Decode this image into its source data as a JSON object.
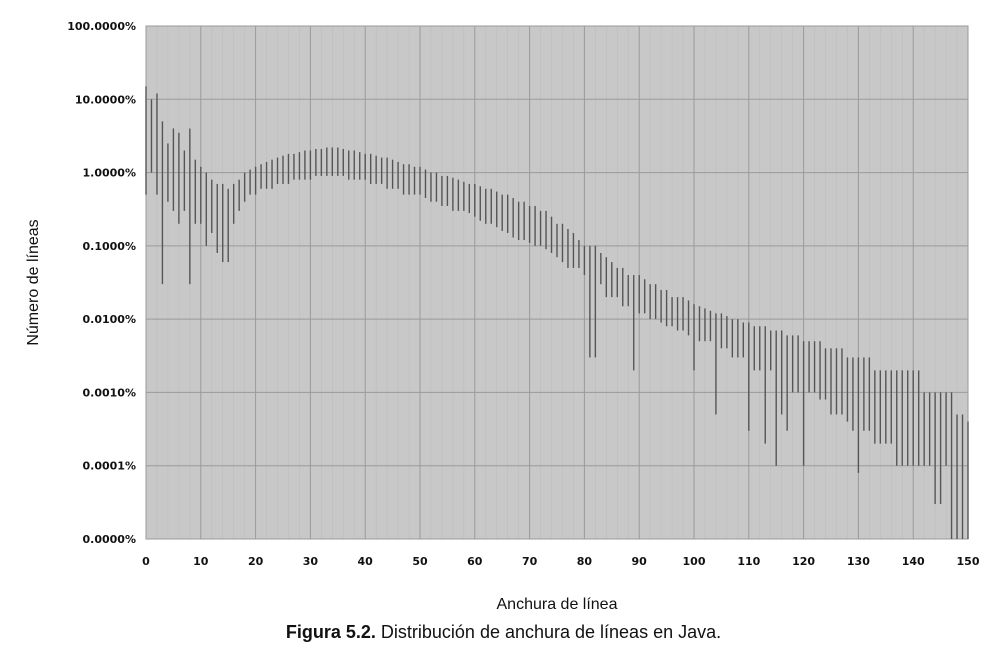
{
  "chart_data": {
    "type": "line",
    "style": "vertical range bars per x value",
    "xlabel": "Anchura de línea",
    "ylabel": "Número de líneas",
    "xlim": [
      0,
      150
    ],
    "x_ticks": [
      "0",
      "10",
      "20",
      "30",
      "40",
      "50",
      "60",
      "70",
      "80",
      "90",
      "100",
      "110",
      "120",
      "130",
      "140",
      "150"
    ],
    "yscale": "log",
    "y_ticks": [
      "100.0000%",
      "10.0000%",
      "1.0000%",
      "0.1000%",
      "0.0100%",
      "0.0010%",
      "0.0001%",
      "0.0000%"
    ],
    "grid": true,
    "grid_minor_x": true,
    "background_color": "#c8c8c8",
    "series_color": "#555555",
    "x": [
      0,
      1,
      2,
      3,
      4,
      5,
      6,
      7,
      8,
      9,
      10,
      11,
      12,
      13,
      14,
      15,
      16,
      17,
      18,
      19,
      20,
      21,
      22,
      23,
      24,
      25,
      26,
      27,
      28,
      29,
      30,
      31,
      32,
      33,
      34,
      35,
      36,
      37,
      38,
      39,
      40,
      41,
      42,
      43,
      44,
      45,
      46,
      47,
      48,
      49,
      50,
      51,
      52,
      53,
      54,
      55,
      56,
      57,
      58,
      59,
      60,
      61,
      62,
      63,
      64,
      65,
      66,
      67,
      68,
      69,
      70,
      71,
      72,
      73,
      74,
      75,
      76,
      77,
      78,
      79,
      80,
      81,
      82,
      83,
      84,
      85,
      86,
      87,
      88,
      89,
      90,
      91,
      92,
      93,
      94,
      95,
      96,
      97,
      98,
      99,
      100,
      101,
      102,
      103,
      104,
      105,
      106,
      107,
      108,
      109,
      110,
      111,
      112,
      113,
      114,
      115,
      116,
      117,
      118,
      119,
      120,
      121,
      122,
      123,
      124,
      125,
      126,
      127,
      128,
      129,
      130,
      131,
      132,
      133,
      134,
      135,
      136,
      137,
      138,
      139,
      140,
      141,
      142,
      143,
      144,
      145,
      146,
      147,
      148,
      149,
      150
    ],
    "y_high_percent": [
      15,
      10,
      12,
      5,
      2.5,
      4,
      3.5,
      2,
      4,
      1.5,
      1.2,
      1,
      0.8,
      0.7,
      0.7,
      0.6,
      0.7,
      0.8,
      1,
      1.1,
      1.2,
      1.3,
      1.4,
      1.5,
      1.6,
      1.7,
      1.8,
      1.8,
      1.9,
      2,
      2,
      2.1,
      2.1,
      2.2,
      2.2,
      2.2,
      2.1,
      2,
      2,
      1.9,
      1.8,
      1.8,
      1.7,
      1.6,
      1.6,
      1.5,
      1.4,
      1.3,
      1.3,
      1.2,
      1.2,
      1.1,
      1,
      1,
      0.9,
      0.9,
      0.85,
      0.8,
      0.75,
      0.7,
      0.7,
      0.65,
      0.6,
      0.6,
      0.55,
      0.5,
      0.5,
      0.45,
      0.4,
      0.4,
      0.35,
      0.35,
      0.3,
      0.3,
      0.25,
      0.2,
      0.2,
      0.17,
      0.15,
      0.12,
      0.1,
      0.1,
      0.1,
      0.08,
      0.07,
      0.06,
      0.05,
      0.05,
      0.04,
      0.04,
      0.04,
      0.035,
      0.03,
      0.03,
      0.025,
      0.025,
      0.02,
      0.02,
      0.02,
      0.018,
      0.016,
      0.015,
      0.014,
      0.013,
      0.012,
      0.012,
      0.011,
      0.01,
      0.01,
      0.009,
      0.009,
      0.008,
      0.008,
      0.008,
      0.007,
      0.007,
      0.007,
      0.006,
      0.006,
      0.006,
      0.005,
      0.005,
      0.005,
      0.005,
      0.004,
      0.004,
      0.004,
      0.004,
      0.003,
      0.003,
      0.003,
      0.003,
      0.003,
      0.002,
      0.002,
      0.002,
      0.002,
      0.002,
      0.002,
      0.002,
      0.002,
      0.002,
      0.001,
      0.001,
      0.001,
      0.001,
      0.001,
      0.001,
      0.0005,
      0.0005,
      0.0004
    ],
    "y_low_percent": [
      0.5,
      1,
      0.5,
      0.03,
      0.4,
      0.3,
      0.2,
      0.3,
      0.03,
      0.2,
      0.2,
      0.1,
      0.15,
      0.08,
      0.06,
      0.06,
      0.2,
      0.3,
      0.4,
      0.5,
      0.5,
      0.6,
      0.6,
      0.6,
      0.7,
      0.7,
      0.7,
      0.8,
      0.8,
      0.8,
      0.8,
      0.9,
      0.9,
      0.9,
      0.9,
      0.9,
      0.9,
      0.8,
      0.8,
      0.8,
      0.8,
      0.7,
      0.7,
      0.7,
      0.6,
      0.6,
      0.6,
      0.5,
      0.5,
      0.5,
      0.5,
      0.45,
      0.4,
      0.4,
      0.35,
      0.35,
      0.3,
      0.3,
      0.3,
      0.28,
      0.25,
      0.22,
      0.2,
      0.2,
      0.18,
      0.16,
      0.15,
      0.13,
      0.12,
      0.12,
      0.11,
      0.1,
      0.1,
      0.09,
      0.08,
      0.07,
      0.06,
      0.05,
      0.05,
      0.05,
      0.04,
      0.003,
      0.003,
      0.03,
      0.02,
      0.02,
      0.02,
      0.015,
      0.015,
      0.002,
      0.012,
      0.012,
      0.01,
      0.01,
      0.009,
      0.008,
      0.008,
      0.007,
      0.007,
      0.006,
      0.002,
      0.005,
      0.005,
      0.005,
      0.0005,
      0.004,
      0.004,
      0.003,
      0.003,
      0.003,
      0.0003,
      0.002,
      0.002,
      0.0002,
      0.002,
      0.0001,
      0.0005,
      0.0003,
      0.001,
      0.001,
      0.0001,
      0.001,
      0.001,
      0.0008,
      0.0008,
      0.0005,
      0.0005,
      0.0005,
      0.0004,
      0.0003,
      8e-05,
      0.0003,
      0.0003,
      0.0002,
      0.0002,
      0.0002,
      0.0002,
      0.0001,
      0.0001,
      0.0001,
      0.0001,
      0.0001,
      0.0001,
      0.0001,
      3e-05,
      3e-05,
      0.0001,
      1e-05,
      5e-06,
      3e-06,
      2e-06
    ]
  },
  "caption": {
    "label": "Figura 5.2.",
    "text": " Distribución de anchura de líneas en Java."
  }
}
